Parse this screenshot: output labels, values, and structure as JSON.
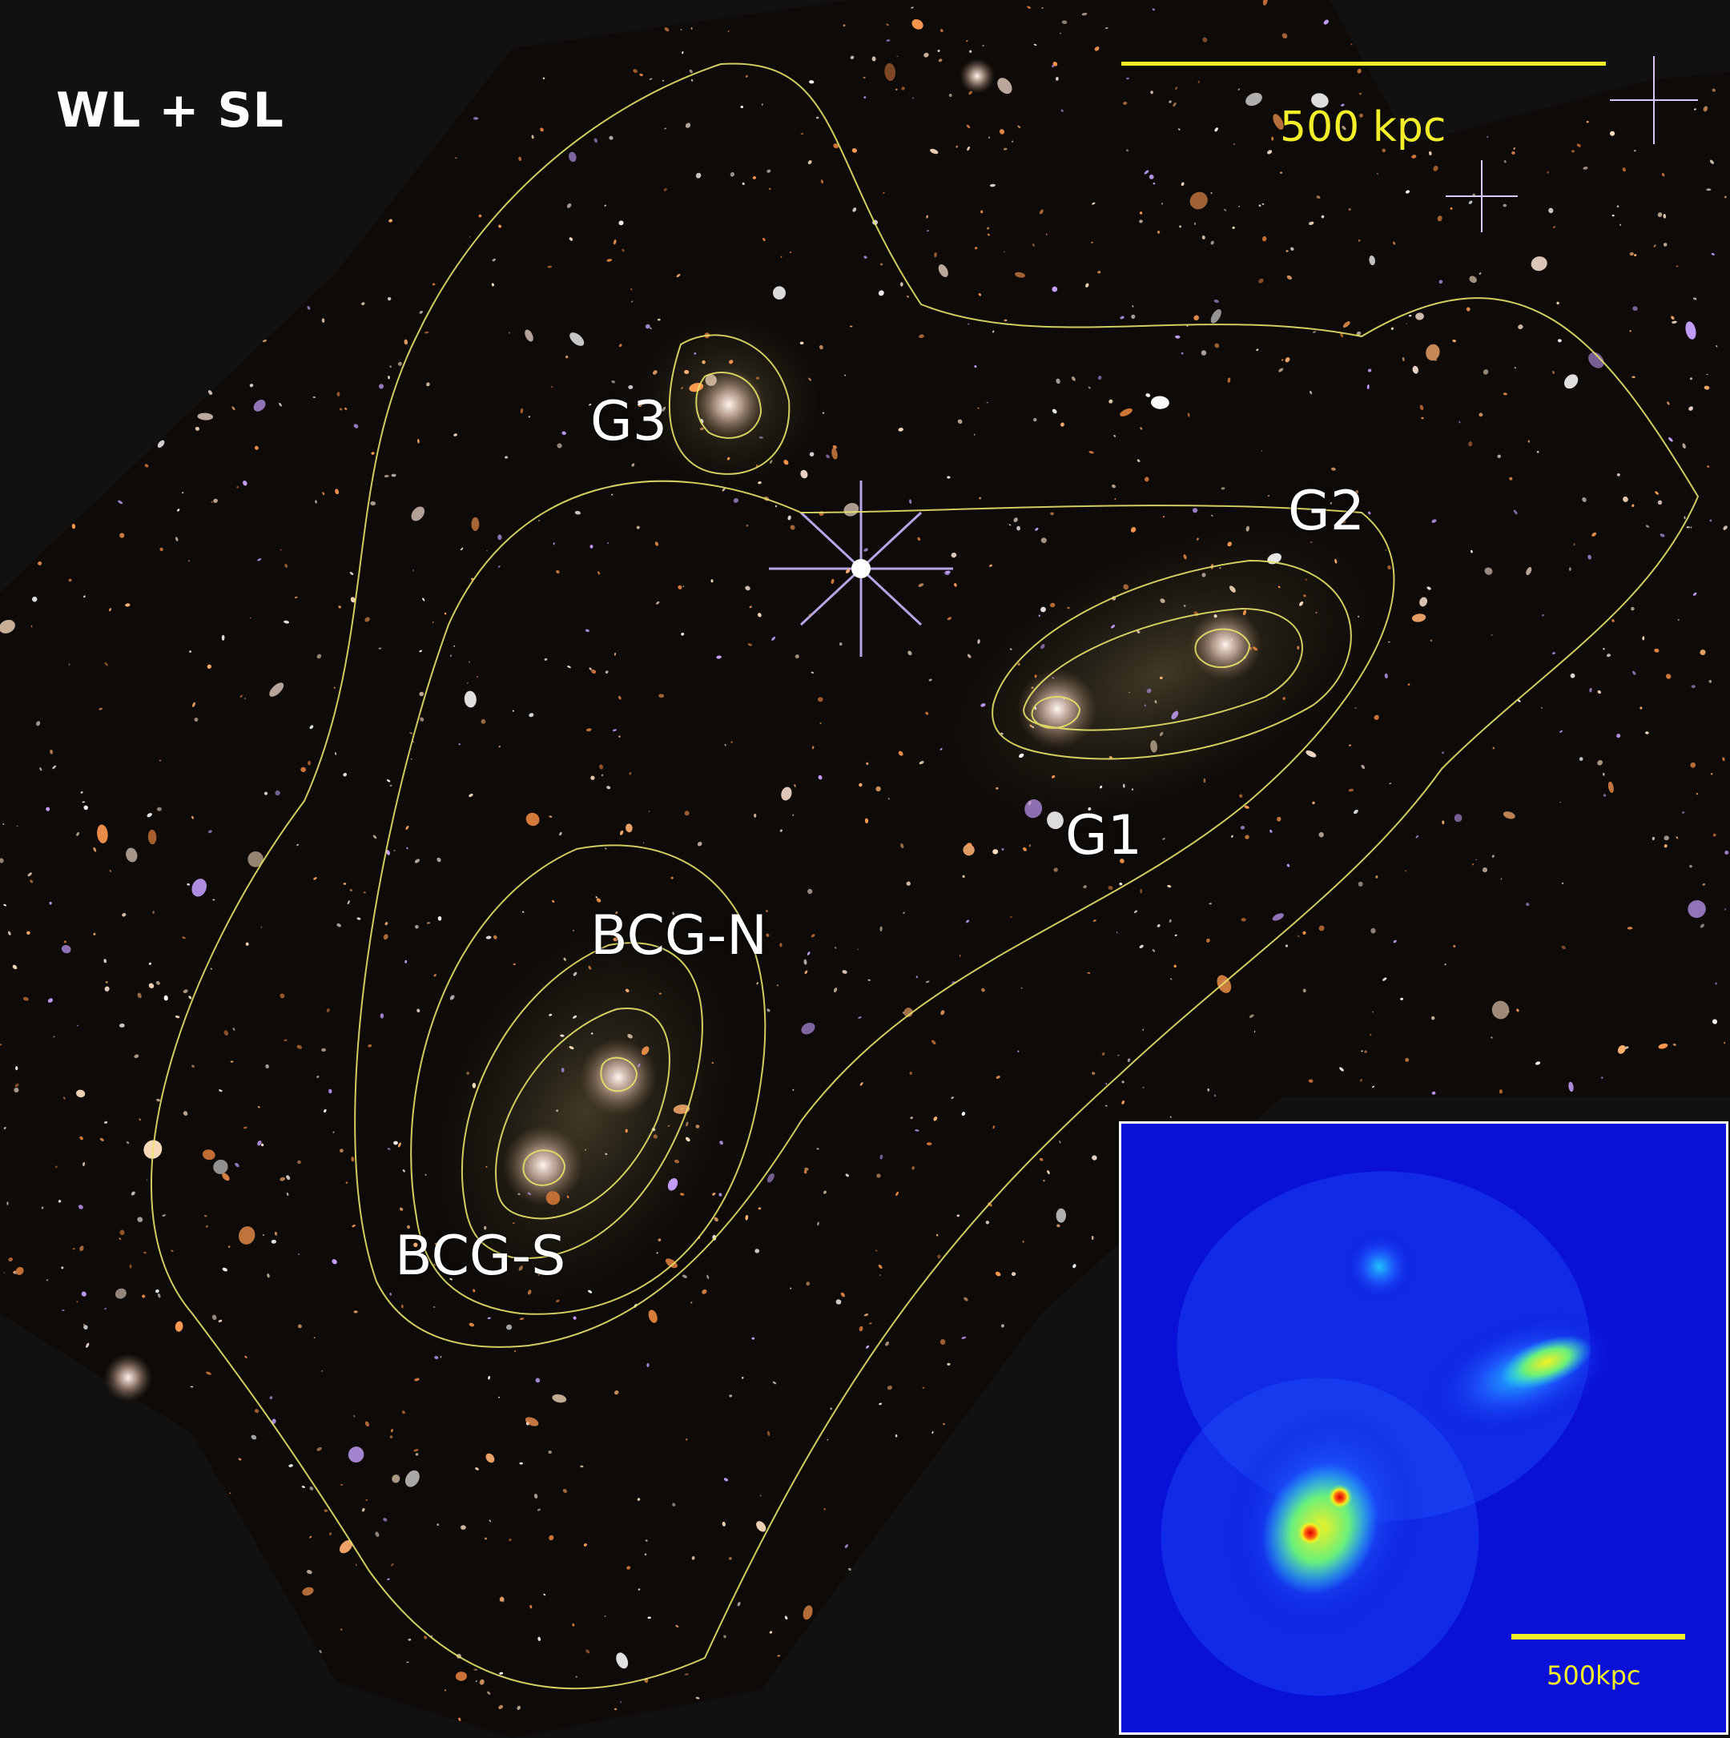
{
  "panel_title": "WL + SL",
  "scale_bar": {
    "label": "500 kpc",
    "color": "#f2ee2a"
  },
  "labels": {
    "g3": "G3",
    "g2": "G2",
    "g1": "G1",
    "bcg_n": "BCG-N",
    "bcg_s": "BCG-S"
  },
  "inset": {
    "scale_label": "500kpc",
    "colormap": [
      "#0a10d8",
      "#1f5cff",
      "#22d6ff",
      "#6af07a",
      "#f5f020",
      "#ff5a10",
      "#d80000"
    ]
  },
  "colors": {
    "background": "#111111",
    "contour": "#e8e26a",
    "label_text": "#ffffff"
  }
}
